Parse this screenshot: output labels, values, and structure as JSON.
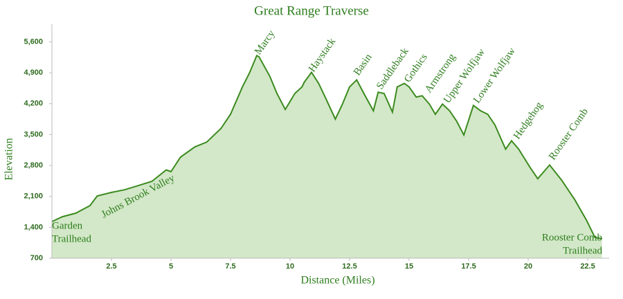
{
  "chart_data": {
    "type": "area",
    "title": "Great Range Traverse",
    "x_label": "Distance (Miles)",
    "y_label": "Elevation",
    "color": "#3a8a1e",
    "fill_color": "#d3e8c8",
    "x": [
      0,
      0.44,
      1.0,
      1.6,
      1.9,
      2.5,
      3.05,
      3.6,
      4.2,
      4.8,
      5.0,
      5.4,
      6.0,
      6.5,
      7.1,
      7.5,
      8.0,
      8.3,
      8.6,
      8.7,
      9.15,
      9.45,
      9.8,
      10.2,
      10.5,
      10.6,
      10.9,
      11.2,
      11.5,
      11.9,
      12.2,
      12.5,
      12.8,
      13.1,
      13.5,
      13.7,
      13.95,
      14.3,
      14.5,
      14.8,
      15.0,
      15.3,
      15.55,
      15.85,
      16.1,
      16.4,
      16.7,
      17.0,
      17.3,
      17.7,
      18.0,
      18.3,
      18.6,
      19.05,
      19.3,
      19.6,
      20.05,
      20.4,
      20.9,
      21.4,
      21.95,
      22.45,
      22.8,
      23.1
    ],
    "values": [
      1530,
      1640,
      1720,
      1890,
      2110,
      2190,
      2250,
      2340,
      2440,
      2700,
      2660,
      2990,
      3220,
      3330,
      3640,
      3960,
      4580,
      4900,
      5290,
      5260,
      4820,
      4430,
      4070,
      4430,
      4580,
      4690,
      4910,
      4660,
      4320,
      3850,
      4190,
      4580,
      4740,
      4430,
      4040,
      4460,
      4430,
      4010,
      4580,
      4660,
      4580,
      4350,
      4380,
      4190,
      3960,
      4190,
      4040,
      3800,
      3490,
      4160,
      4040,
      3960,
      3720,
      3170,
      3360,
      3170,
      2780,
      2500,
      2810,
      2470,
      2030,
      1560,
      1170,
      1140
    ],
    "xlim": [
      0,
      23.4
    ],
    "ylim": [
      700,
      6000
    ],
    "xticks": [
      2.5,
      5,
      7.5,
      10,
      12.5,
      15,
      17.5,
      20,
      22.5
    ],
    "yticks": [
      700,
      {
        "value": 1400,
        "label": "1,400"
      },
      {
        "value": 2100,
        "label": "2,100"
      },
      {
        "value": 2800,
        "label": "2,800"
      },
      {
        "value": 3500,
        "label": "3,500"
      },
      {
        "value": 4200,
        "label": "4,200"
      },
      {
        "value": 4900,
        "label": "4,900"
      },
      {
        "value": 5600,
        "label": "5,600"
      }
    ],
    "annotations": [
      {
        "lines": [
          "Marcy"
        ]
      },
      {
        "lines": [
          "Haystack"
        ]
      },
      {
        "lines": [
          "Basin"
        ]
      },
      {
        "lines": [
          "Saddleback"
        ]
      },
      {
        "lines": [
          "Gothics"
        ]
      },
      {
        "lines": [
          "Armstrong"
        ]
      },
      {
        "lines": [
          "Upper Wolfjaw"
        ]
      },
      {
        "lines": [
          "Lower Wolfjaw"
        ]
      },
      {
        "lines": [
          "Hedgehog"
        ]
      },
      {
        "lines": [
          "Rooster Comb"
        ]
      },
      {
        "lines": [
          "Johns Brook Valley"
        ]
      },
      {
        "lines": [
          "Garden",
          "Trailhead"
        ]
      },
      {
        "lines": [
          "Rooster Comb",
          "Trailhead"
        ]
      }
    ]
  }
}
